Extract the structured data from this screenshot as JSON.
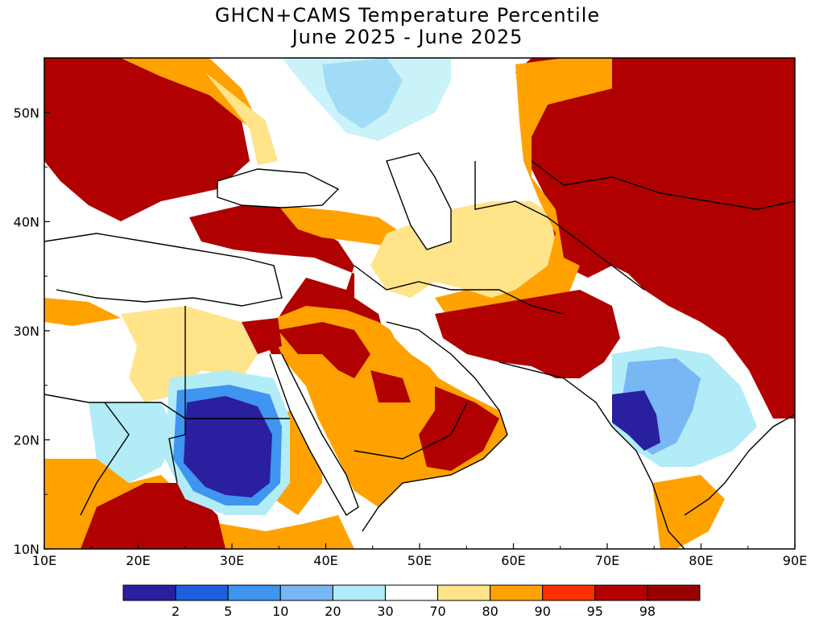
{
  "title": {
    "line1": "GHCN+CAMS Temperature Percentile",
    "line2": "June 2025 - June 2025"
  },
  "map": {
    "lon_range": [
      10,
      90
    ],
    "lat_range": [
      10,
      55
    ],
    "lon_ticks": [
      "10E",
      "20E",
      "30E",
      "40E",
      "50E",
      "60E",
      "70E",
      "80E",
      "90E"
    ],
    "lat_ticks": [
      "10N",
      "20N",
      "30N",
      "40N",
      "50N"
    ],
    "dominant_features": [
      {
        "area": "Europe / Balkans / Turkey",
        "percentile_class": ">98"
      },
      {
        "area": "Central Asia / Kazakhstan / Pakistan",
        "percentile_class": ">98"
      },
      {
        "area": "Sudan / Egypt south",
        "percentile_class": "<2"
      },
      {
        "area": "Western India",
        "percentile_class": "<2"
      },
      {
        "area": "Arabian Peninsula",
        "percentile_class": "90-98"
      },
      {
        "area": "Mediterranean / Black / Caspian Sea",
        "percentile_class": "no data"
      }
    ]
  },
  "legend": {
    "labels": [
      "2",
      "5",
      "10",
      "20",
      "30",
      "70",
      "80",
      "90",
      "95",
      "98"
    ],
    "colors": [
      "#2a1f9e",
      "#1e5fe0",
      "#3f95f0",
      "#78b6f4",
      "#b2ecf6",
      "#ffffff",
      "#ffe48a",
      "#ffa200",
      "#ff3000",
      "#b50000",
      "#990000"
    ]
  }
}
